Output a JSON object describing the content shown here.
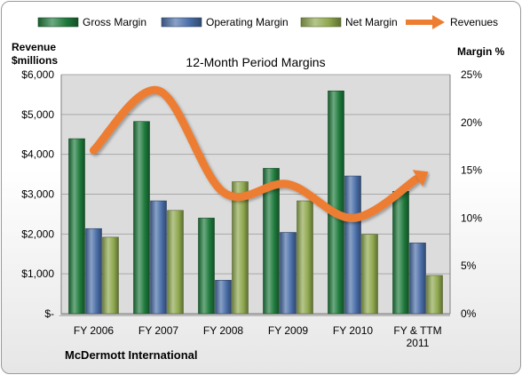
{
  "chart_data": {
    "type": "bar",
    "title": "12-Month Period Margins",
    "company": "McDermott International",
    "left_axis_label_line1": "Revenue",
    "left_axis_label_line2": "$millions",
    "right_axis_label": "Margin %",
    "categories": [
      [
        "FY 2006"
      ],
      [
        "FY 2007"
      ],
      [
        "FY 2008"
      ],
      [
        "FY 2009"
      ],
      [
        "FY 2010"
      ],
      [
        "FY & TTM",
        "2011"
      ]
    ],
    "left_ylim": [
      0,
      6000
    ],
    "left_ticks": [
      0,
      1000,
      2000,
      3000,
      4000,
      5000,
      6000
    ],
    "left_tick_labels": [
      "$-",
      "$1,000",
      "$2,000",
      "$3,000",
      "$4,000",
      "$5,000",
      "$6,000"
    ],
    "right_ylim": [
      0,
      25
    ],
    "right_ticks": [
      0,
      5,
      10,
      15,
      20,
      25
    ],
    "right_tick_labels": [
      "0%",
      "5%",
      "10%",
      "15%",
      "20%",
      "25%"
    ],
    "grid": true,
    "legend_position": "top",
    "series": [
      {
        "name": "Gross Margin",
        "kind": "bar",
        "axis": "right",
        "unit": "%",
        "color": "#1e7a3c",
        "values": [
          18.3,
          20.1,
          10.0,
          15.2,
          23.3,
          12.8
        ]
      },
      {
        "name": "Operating Margin",
        "kind": "bar",
        "axis": "right",
        "unit": "%",
        "color": "#4a6ea8",
        "values": [
          8.9,
          11.8,
          3.5,
          8.5,
          14.4,
          7.4
        ]
      },
      {
        "name": "Net Margin",
        "kind": "bar",
        "axis": "right",
        "unit": "%",
        "color": "#8fa84e",
        "values": [
          8.0,
          10.8,
          13.8,
          11.8,
          8.3,
          4.0
        ]
      },
      {
        "name": "Revenues",
        "kind": "line",
        "axis": "left",
        "unit": "$ millions",
        "color": "#ed7d31",
        "values": [
          4100,
          5600,
          3050,
          3250,
          2400,
          3400
        ]
      }
    ]
  }
}
